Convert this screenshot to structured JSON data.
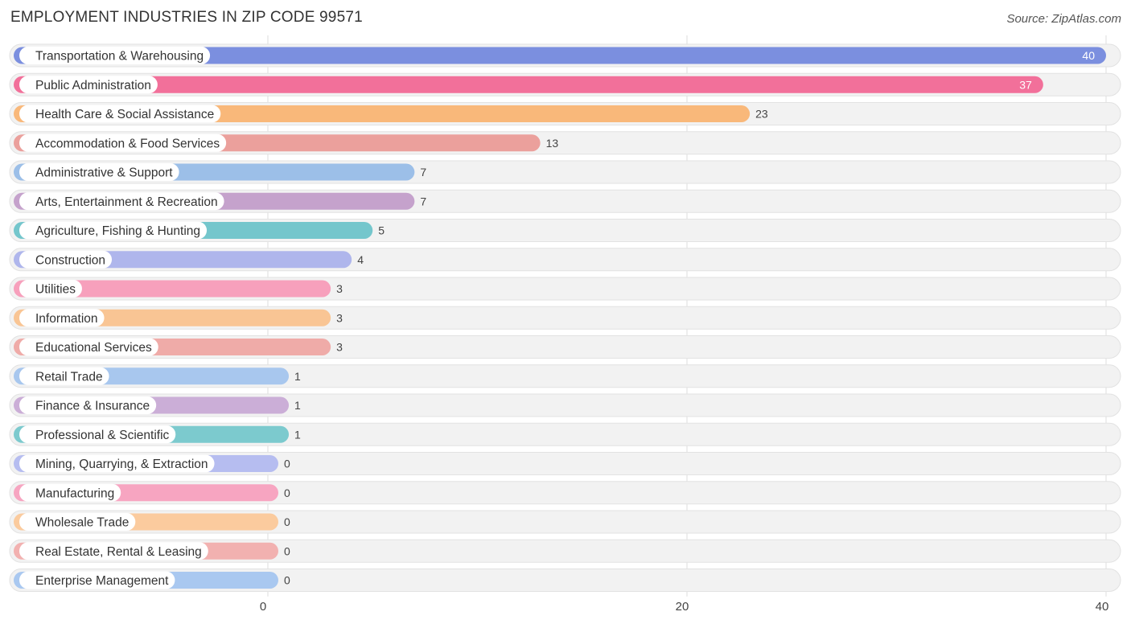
{
  "title": "EMPLOYMENT INDUSTRIES IN ZIP CODE 99571",
  "source": "Source: ZipAtlas.com",
  "chart_data": {
    "type": "bar",
    "orientation": "horizontal",
    "title": "EMPLOYMENT INDUSTRIES IN ZIP CODE 99571",
    "xlabel": "",
    "ylabel": "",
    "xlim": [
      0,
      40
    ],
    "xticks": [
      0,
      20,
      40
    ],
    "grid": true,
    "categories": [
      "Transportation & Warehousing",
      "Public Administration",
      "Health Care & Social Assistance",
      "Accommodation & Food Services",
      "Administrative & Support",
      "Arts, Entertainment & Recreation",
      "Agriculture, Fishing & Hunting",
      "Construction",
      "Utilities",
      "Information",
      "Educational Services",
      "Retail Trade",
      "Finance & Insurance",
      "Professional & Scientific",
      "Mining, Quarrying, & Extraction",
      "Manufacturing",
      "Wholesale Trade",
      "Real Estate, Rental & Leasing",
      "Enterprise Management"
    ],
    "values": [
      40,
      37,
      23,
      13,
      7,
      7,
      5,
      4,
      3,
      3,
      3,
      1,
      1,
      1,
      0,
      0,
      0,
      0,
      0
    ],
    "colors": [
      "#7b8fdf",
      "#f2709a",
      "#f9b87a",
      "#eba09c",
      "#9cbfe8",
      "#c5a2cc",
      "#74c6cc",
      "#afb6ec",
      "#f7a0bc",
      "#f9c594",
      "#efaba8",
      "#a8c7ee",
      "#cbaed7",
      "#7ccace",
      "#b6bdf0",
      "#f7a5c1",
      "#fbcb9e",
      "#f2b1b0",
      "#a9c8f0"
    ]
  }
}
